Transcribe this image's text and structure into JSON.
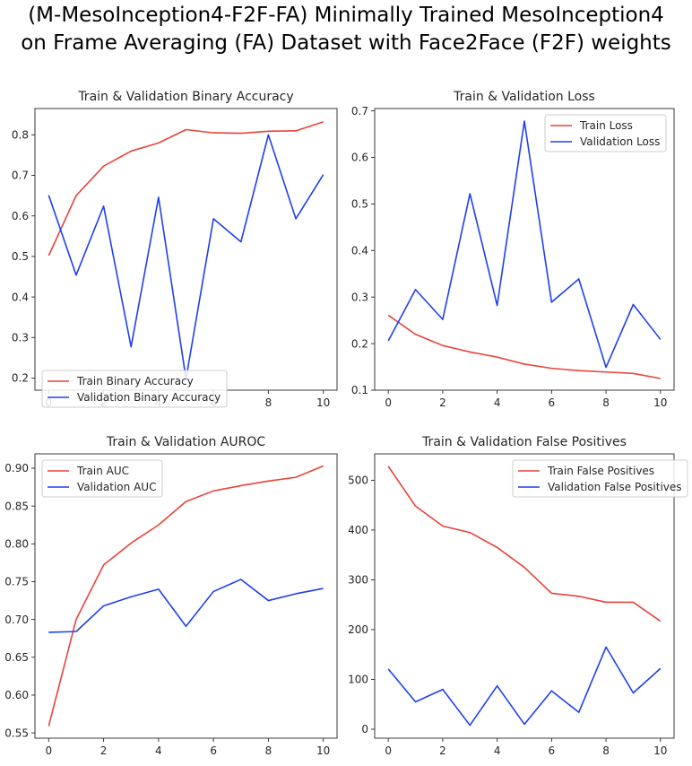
{
  "figure": {
    "title_line1": "(M-MesoInception4-F2F-FA) Minimally Trained MesoInception4",
    "title_line2": "on Frame Averaging (FA) Dataset with Face2Face (F2F) weights"
  },
  "colors": {
    "train": "#e8433a",
    "validation": "#1f3ff0"
  },
  "chart_data": [
    {
      "type": "line",
      "title": "Train & Validation Binary Accuracy",
      "x": [
        0,
        1,
        2,
        3,
        4,
        5,
        6,
        7,
        8,
        9,
        10
      ],
      "xticks": [
        0,
        2,
        4,
        6,
        8,
        10
      ],
      "xlim": [
        -0.5,
        10.5
      ],
      "ylim": [
        0.17,
        0.865
      ],
      "yticks": [
        0.2,
        0.3,
        0.4,
        0.5,
        0.6,
        0.7,
        0.8
      ],
      "ytick_labels": [
        "0.2",
        "0.3",
        "0.4",
        "0.5",
        "0.6",
        "0.7",
        "0.8"
      ],
      "legend_loc": "lower-left",
      "series": [
        {
          "name": "Train Binary Accuracy",
          "values": [
            0.502,
            0.65,
            0.723,
            0.76,
            0.78,
            0.813,
            0.805,
            0.804,
            0.809,
            0.81,
            0.832
          ]
        },
        {
          "name": "Validation Binary Accuracy",
          "values": [
            0.651,
            0.454,
            0.624,
            0.277,
            0.646,
            0.198,
            0.593,
            0.536,
            0.8,
            0.593,
            0.702
          ]
        }
      ]
    },
    {
      "type": "line",
      "title": "Train & Validation Loss",
      "x": [
        0,
        1,
        2,
        3,
        4,
        5,
        6,
        7,
        8,
        9,
        10
      ],
      "xticks": [
        0,
        2,
        4,
        6,
        8,
        10
      ],
      "xlim": [
        -0.5,
        10.5
      ],
      "ylim": [
        0.1,
        0.705
      ],
      "yticks": [
        0.1,
        0.2,
        0.3,
        0.4,
        0.5,
        0.6,
        0.7
      ],
      "ytick_labels": [
        "0.1",
        "0.2",
        "0.3",
        "0.4",
        "0.5",
        "0.6",
        "0.7"
      ],
      "legend_loc": "upper-right",
      "series": [
        {
          "name": "Train Loss",
          "values": [
            0.261,
            0.22,
            0.196,
            0.182,
            0.171,
            0.156,
            0.147,
            0.142,
            0.139,
            0.136,
            0.125
          ]
        },
        {
          "name": "Validation Loss",
          "values": [
            0.206,
            0.316,
            0.252,
            0.522,
            0.282,
            0.678,
            0.289,
            0.339,
            0.149,
            0.284,
            0.209
          ]
        }
      ]
    },
    {
      "type": "line",
      "title": "Train & Validation AUROC",
      "x": [
        0,
        1,
        2,
        3,
        4,
        5,
        6,
        7,
        8,
        9,
        10
      ],
      "xticks": [
        0,
        2,
        4,
        6,
        8,
        10
      ],
      "xlim": [
        -0.5,
        10.5
      ],
      "ylim": [
        0.543,
        0.919
      ],
      "yticks": [
        0.55,
        0.6,
        0.65,
        0.7,
        0.75,
        0.8,
        0.85,
        0.9
      ],
      "ytick_labels": [
        "0.55",
        "0.60",
        "0.65",
        "0.70",
        "0.75",
        "0.80",
        "0.85",
        "0.90"
      ],
      "legend_loc": "upper-left",
      "series": [
        {
          "name": "Train AUC",
          "values": [
            0.559,
            0.7,
            0.772,
            0.801,
            0.825,
            0.856,
            0.87,
            0.877,
            0.883,
            0.888,
            0.903
          ]
        },
        {
          "name": "Validation AUC",
          "values": [
            0.683,
            0.684,
            0.718,
            0.73,
            0.74,
            0.691,
            0.737,
            0.753,
            0.725,
            0.734,
            0.741
          ]
        }
      ]
    },
    {
      "type": "line",
      "title": "Train & Validation False Positives",
      "x": [
        0,
        1,
        2,
        3,
        4,
        5,
        6,
        7,
        8,
        9,
        10
      ],
      "xticks": [
        0,
        2,
        4,
        6,
        8,
        10
      ],
      "xlim": [
        -0.5,
        10.5
      ],
      "ylim": [
        -18,
        553
      ],
      "yticks": [
        0,
        100,
        200,
        300,
        400,
        500
      ],
      "ytick_labels": [
        "0",
        "100",
        "200",
        "300",
        "400",
        "500"
      ],
      "legend_loc": "upper-right",
      "series": [
        {
          "name": "Train False Positives",
          "values": [
            528,
            448,
            408,
            395,
            365,
            325,
            273,
            267,
            255,
            255,
            217
          ]
        },
        {
          "name": "Validation False Positives",
          "values": [
            121,
            55,
            80,
            8,
            87,
            10,
            77,
            34,
            165,
            73,
            122
          ]
        }
      ]
    }
  ]
}
